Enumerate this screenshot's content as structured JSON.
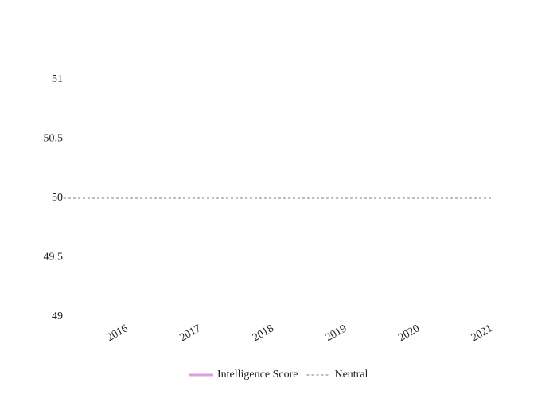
{
  "chart_data": {
    "type": "line",
    "categories": [
      "2016",
      "2017",
      "2018",
      "2019",
      "2020",
      "2021"
    ],
    "series": [
      {
        "name": "Intelligence Score",
        "color": "#dda0dd",
        "values": [
          null,
          null,
          null,
          null,
          null,
          null
        ]
      }
    ],
    "reference_line": {
      "name": "Neutral",
      "value": 50,
      "color": "#999999",
      "dashed": true
    },
    "ylim": [
      49,
      51
    ],
    "yticks": [
      49,
      49.5,
      50,
      50.5,
      51
    ],
    "grid": false
  }
}
